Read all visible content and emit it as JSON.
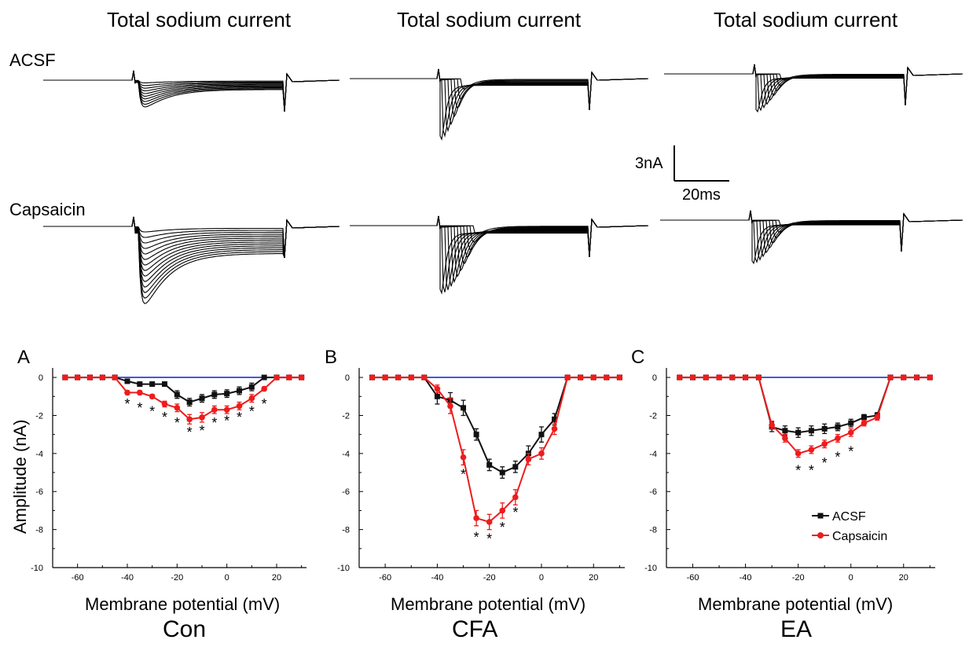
{
  "column_titles": [
    "Total sodium current",
    "Total sodium current",
    "Total sodium current"
  ],
  "row_labels": {
    "top": "ACSF",
    "bottom": "Capsaicin"
  },
  "scale_bar": {
    "amplitude": "3nA",
    "time": "20ms"
  },
  "panel_letters": [
    "A",
    "B",
    "C"
  ],
  "conditions": [
    "Con",
    "CFA",
    "EA"
  ],
  "axis": {
    "xlabel": "Membrane potential (mV)",
    "ylabel": "Amplitude (nA)"
  },
  "colors": {
    "acsf": "#111111",
    "capsaicin": "#ee1c1c",
    "zero_line": "#1f2fd6",
    "trace": "#000000"
  },
  "legend": {
    "acsf": "ACSF",
    "capsaicin": "Capsaicin",
    "placement": "inside-lower-right of panel C"
  },
  "chart_data": [
    {
      "type": "line",
      "panel": "A",
      "xlabel": "Membrane potential (mV)",
      "ylabel": "Amplitude (nA)",
      "xlim": [
        -70,
        32
      ],
      "ylim": [
        -10,
        0.5
      ],
      "xticks": [
        -60,
        -40,
        -20,
        0,
        20
      ],
      "yticks": [
        0,
        -2,
        -4,
        -6,
        -8,
        -10
      ],
      "series": [
        {
          "key": "zero",
          "x": [
            -65,
            30
          ],
          "y": [
            0,
            0
          ]
        },
        {
          "key": "acsf",
          "name": "ACSF",
          "x": [
            -65,
            -60,
            -55,
            -50,
            -45,
            -40,
            -35,
            -30,
            -25,
            -20,
            -15,
            -10,
            -5,
            0,
            5,
            10,
            15,
            20,
            25,
            30
          ],
          "y": [
            0,
            0,
            0,
            0,
            0,
            -0.2,
            -0.35,
            -0.35,
            -0.35,
            -0.9,
            -1.3,
            -1.1,
            -0.9,
            -0.85,
            -0.7,
            -0.5,
            0,
            0,
            0,
            0
          ],
          "err": [
            0,
            0,
            0,
            0,
            0,
            0.05,
            0.05,
            0.05,
            0.05,
            0.2,
            0.2,
            0.2,
            0.2,
            0.2,
            0.2,
            0.2,
            0,
            0,
            0,
            0
          ]
        },
        {
          "key": "capsaicin",
          "name": "Capsaicin",
          "x": [
            -65,
            -60,
            -55,
            -50,
            -45,
            -40,
            -35,
            -30,
            -25,
            -20,
            -15,
            -10,
            -5,
            0,
            5,
            10,
            15,
            20,
            25,
            30
          ],
          "y": [
            0,
            0,
            0,
            0,
            0,
            -0.8,
            -0.8,
            -1.0,
            -1.4,
            -1.6,
            -2.2,
            -2.1,
            -1.7,
            -1.7,
            -1.5,
            -1.1,
            -0.6,
            0,
            0,
            0
          ],
          "err": [
            0,
            0,
            0,
            0,
            0,
            0.1,
            0.1,
            0.1,
            0.15,
            0.2,
            0.25,
            0.25,
            0.2,
            0.2,
            0.2,
            0.2,
            0.1,
            0,
            0,
            0
          ]
        }
      ],
      "stars": [
        {
          "x": -40,
          "y": -1.4
        },
        {
          "x": -35,
          "y": -1.6
        },
        {
          "x": -30,
          "y": -1.8
        },
        {
          "x": -25,
          "y": -2.1
        },
        {
          "x": -20,
          "y": -2.4
        },
        {
          "x": -15,
          "y": -2.9
        },
        {
          "x": -10,
          "y": -2.8
        },
        {
          "x": -5,
          "y": -2.4
        },
        {
          "x": 0,
          "y": -2.3
        },
        {
          "x": 5,
          "y": -2.1
        },
        {
          "x": 10,
          "y": -1.8
        },
        {
          "x": 15,
          "y": -1.4
        }
      ]
    },
    {
      "type": "line",
      "panel": "B",
      "xlabel": "Membrane potential (mV)",
      "ylabel": "",
      "xlim": [
        -70,
        32
      ],
      "ylim": [
        -10,
        0.5
      ],
      "xticks": [
        -60,
        -40,
        -20,
        0,
        20
      ],
      "yticks": [
        0,
        -2,
        -4,
        -6,
        -8,
        -10
      ],
      "series": [
        {
          "key": "zero",
          "x": [
            -65,
            30
          ],
          "y": [
            0,
            0
          ]
        },
        {
          "key": "acsf",
          "name": "ACSF",
          "x": [
            -65,
            -60,
            -55,
            -50,
            -45,
            -40,
            -35,
            -30,
            -25,
            -20,
            -15,
            -10,
            -5,
            0,
            5,
            10,
            15,
            20,
            25,
            30
          ],
          "y": [
            0,
            0,
            0,
            0,
            0,
            -1.0,
            -1.2,
            -1.6,
            -3.0,
            -4.6,
            -5.0,
            -4.7,
            -4.0,
            -3.0,
            -2.2,
            0,
            0,
            0,
            0,
            0
          ],
          "err": [
            0,
            0,
            0,
            0,
            0,
            0.4,
            0.4,
            0.4,
            0.3,
            0.3,
            0.3,
            0.3,
            0.4,
            0.4,
            0.3,
            0,
            0,
            0,
            0,
            0
          ]
        },
        {
          "key": "capsaicin",
          "name": "Capsaicin",
          "x": [
            -65,
            -60,
            -55,
            -50,
            -45,
            -40,
            -35,
            -30,
            -25,
            -20,
            -15,
            -10,
            -5,
            0,
            5,
            10,
            15,
            20,
            25,
            30
          ],
          "y": [
            0,
            0,
            0,
            0,
            0,
            -0.6,
            -1.5,
            -4.2,
            -7.4,
            -7.6,
            -7.0,
            -6.3,
            -4.3,
            -4.0,
            -2.7,
            0,
            0,
            0,
            0,
            0
          ],
          "err": [
            0,
            0,
            0,
            0,
            0,
            0.2,
            0.4,
            0.4,
            0.4,
            0.4,
            0.4,
            0.4,
            0.3,
            0.3,
            0.3,
            0,
            0,
            0,
            0,
            0
          ]
        }
      ],
      "stars": [
        {
          "x": -30,
          "y": -5.1
        },
        {
          "x": -25,
          "y": -8.4
        },
        {
          "x": -20,
          "y": -8.5
        },
        {
          "x": -15,
          "y": -7.9
        },
        {
          "x": -10,
          "y": -7.1
        }
      ]
    },
    {
      "type": "line",
      "panel": "C",
      "xlabel": "Membrane potential (mV)",
      "ylabel": "",
      "xlim": [
        -70,
        32
      ],
      "ylim": [
        -10,
        0.5
      ],
      "xticks": [
        -60,
        -40,
        -20,
        0,
        20
      ],
      "yticks": [
        0,
        -2,
        -4,
        -6,
        -8,
        -10
      ],
      "series": [
        {
          "key": "zero",
          "x": [
            -65,
            30
          ],
          "y": [
            0,
            0
          ]
        },
        {
          "key": "acsf",
          "name": "ACSF",
          "x": [
            -65,
            -60,
            -55,
            -50,
            -45,
            -40,
            -35,
            -30,
            -25,
            -20,
            -15,
            -10,
            -5,
            0,
            5,
            10,
            15,
            20,
            25,
            30
          ],
          "y": [
            0,
            0,
            0,
            0,
            0,
            0,
            0,
            -2.6,
            -2.8,
            -2.9,
            -2.8,
            -2.7,
            -2.6,
            -2.4,
            -2.1,
            -2.0,
            0,
            0,
            0,
            0
          ],
          "err": [
            0,
            0,
            0,
            0,
            0,
            0,
            0,
            0.25,
            0.25,
            0.25,
            0.25,
            0.25,
            0.2,
            0.2,
            0.15,
            0.15,
            0,
            0,
            0,
            0
          ]
        },
        {
          "key": "capsaicin",
          "name": "Capsaicin",
          "x": [
            -65,
            -60,
            -55,
            -50,
            -45,
            -40,
            -35,
            -30,
            -25,
            -20,
            -15,
            -10,
            -5,
            0,
            5,
            10,
            15,
            20,
            25,
            30
          ],
          "y": [
            0,
            0,
            0,
            0,
            0,
            0,
            0,
            -2.5,
            -3.2,
            -4.0,
            -3.8,
            -3.5,
            -3.2,
            -2.9,
            -2.4,
            -2.1,
            0,
            0,
            0,
            0
          ],
          "err": [
            0,
            0,
            0,
            0,
            0,
            0,
            0,
            0.2,
            0.2,
            0.2,
            0.2,
            0.2,
            0.2,
            0.2,
            0.15,
            0.15,
            0,
            0,
            0,
            0
          ]
        }
      ],
      "stars": [
        {
          "x": -20,
          "y": -4.9
        },
        {
          "x": -15,
          "y": -4.9
        },
        {
          "x": -10,
          "y": -4.5
        },
        {
          "x": -5,
          "y": -4.2
        },
        {
          "x": 0,
          "y": -3.9
        }
      ]
    }
  ],
  "traces": [
    {
      "key": "con_acsf",
      "baseline": 0,
      "peak": 0.9,
      "decay": 0.6,
      "n": 10,
      "fast": false
    },
    {
      "key": "cfa_acsf",
      "baseline": 0,
      "peak": 4.5,
      "decay": 0.15,
      "n": 8,
      "fast": true
    },
    {
      "key": "ea_acsf",
      "baseline": 0,
      "peak": 2.8,
      "decay": 0.2,
      "n": 9,
      "fast": true
    },
    {
      "key": "con_caps",
      "baseline": 0,
      "peak": 2.6,
      "decay": 0.8,
      "n": 14,
      "fast": false
    },
    {
      "key": "cfa_caps",
      "baseline": 0,
      "peak": 5.0,
      "decay": 0.2,
      "n": 12,
      "fast": true
    },
    {
      "key": "ea_caps",
      "baseline": 0,
      "peak": 3.2,
      "decay": 0.22,
      "n": 10,
      "fast": true
    }
  ]
}
